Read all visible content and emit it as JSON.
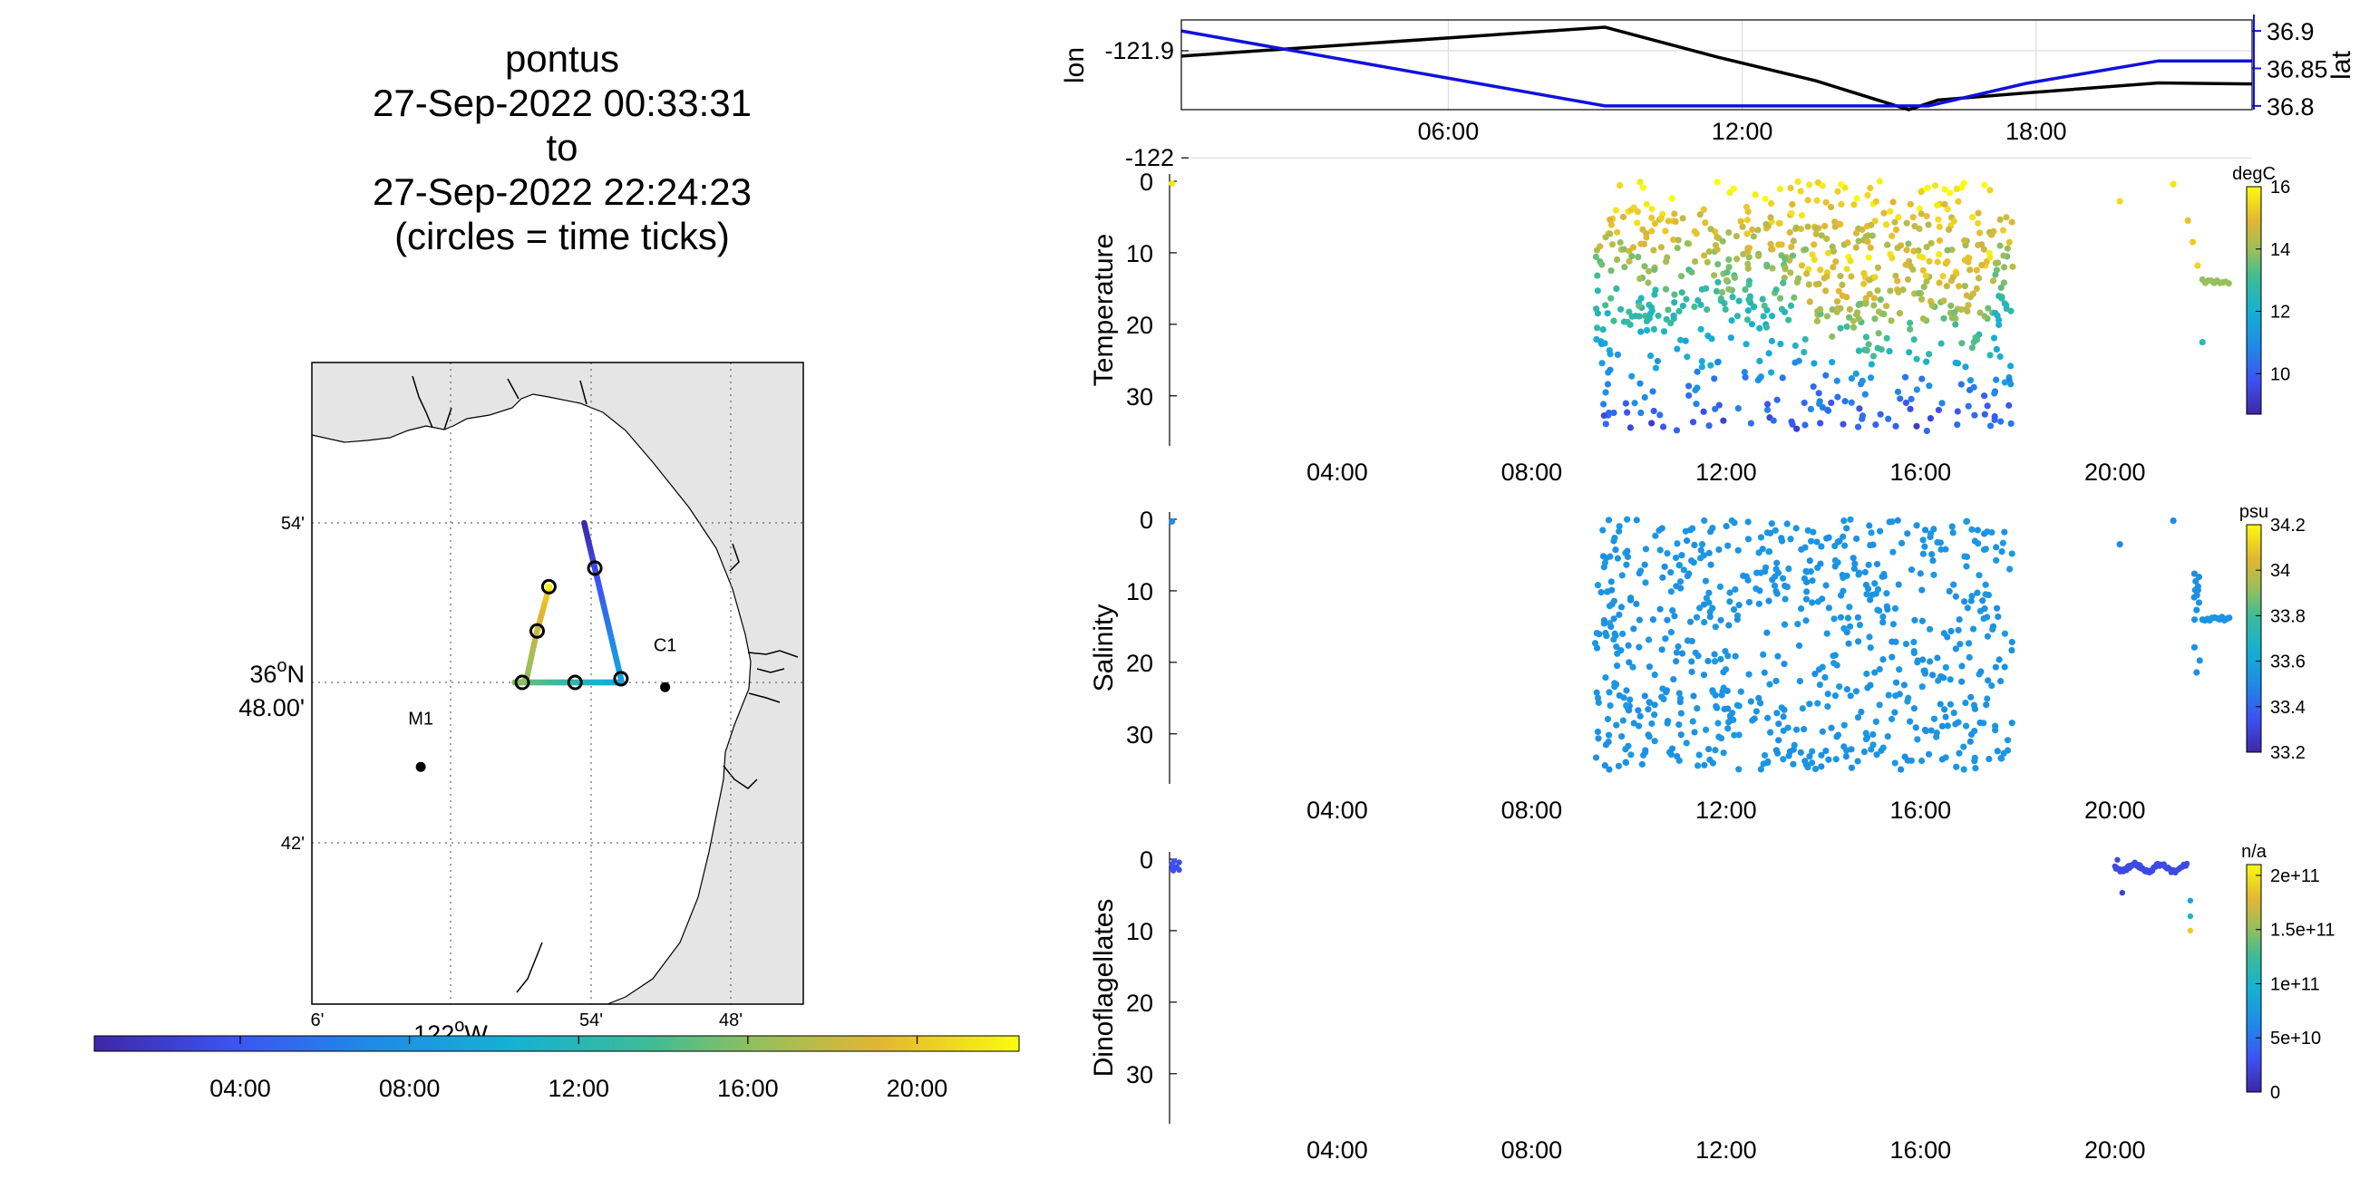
{
  "header": {
    "lines": [
      "pontus",
      "27-Sep-2022 00:33:31",
      "to",
      "27-Sep-2022 22:24:23",
      "(circles = time ticks)"
    ]
  },
  "map": {
    "lat_ticks": [
      "54'",
      "42'"
    ],
    "lat_center_deg": "36",
    "lat_center_min": "48.00'",
    "lat_center_n": "N",
    "lon_ticks": [
      "6'",
      "54'",
      "48'"
    ],
    "lon_center_deg": "122",
    "lon_center_w": "W",
    "stations": [
      {
        "name": "C1",
        "lon": -121.847,
        "lat": 36.797
      },
      {
        "name": "M1",
        "lon": -122.022,
        "lat": 36.747
      }
    ],
    "land_color": "#e5e5e5",
    "track_colormap": "parula"
  },
  "colorbar_time": {
    "ticks": [
      "04:00",
      "08:00",
      "12:00",
      "16:00",
      "20:00"
    ]
  },
  "chart_data": [
    {
      "type": "line",
      "panel": "position",
      "x_ticks": [
        "06:00",
        "12:00",
        "18:00"
      ],
      "series": [
        {
          "name": "lon",
          "color": "#000000",
          "x": [
            0.55,
            9.2,
            11.5,
            13.5,
            15.4,
            16.0,
            17.9,
            20.5,
            22.4
          ],
          "y": [
            -121.905,
            -121.878,
            -121.906,
            -121.928,
            -121.955,
            -121.946,
            -121.939,
            -121.93,
            -121.931
          ]
        },
        {
          "name": "lat",
          "color": "#1111dd",
          "x": [
            0.55,
            9.2,
            13.4,
            15.8,
            17.8,
            20.5,
            22.4
          ],
          "y": [
            36.9,
            36.8,
            36.8,
            36.8,
            36.83,
            36.86,
            36.86
          ]
        }
      ],
      "ylabel_left": "lon",
      "ylabel_right": "lat",
      "y_left_ticks": [
        "-121.9",
        "-122"
      ],
      "y_right_ticks": [
        "36.9",
        "36.85",
        "36.8"
      ]
    },
    {
      "type": "scatter",
      "panel": "temperature",
      "ylabel": "Temperature",
      "ylim": [
        0,
        37
      ],
      "y_ticks": [
        "0",
        "10",
        "20",
        "30"
      ],
      "x_ticks": [
        "04:00",
        "08:00",
        "12:00",
        "16:00",
        "20:00"
      ],
      "colorbar_units": "degC",
      "colorbar_ticks": [
        "16",
        "14",
        "12",
        "10"
      ],
      "crange": [
        8.7,
        16
      ]
    },
    {
      "type": "scatter",
      "panel": "salinity",
      "ylabel": "Salinity",
      "ylim": [
        0,
        37
      ],
      "y_ticks": [
        "0",
        "10",
        "20",
        "30"
      ],
      "x_ticks": [
        "04:00",
        "08:00",
        "12:00",
        "16:00",
        "20:00"
      ],
      "colorbar_units": "psu",
      "colorbar_ticks": [
        "34.2",
        "34",
        "33.8",
        "33.6",
        "33.4",
        "33.2"
      ],
      "crange": [
        33.2,
        34.2
      ]
    },
    {
      "type": "scatter",
      "panel": "dinoflagellates",
      "ylabel": "Dinoflagellates",
      "ylim": [
        0,
        37
      ],
      "y_ticks": [
        "0",
        "10",
        "20",
        "30"
      ],
      "x_ticks": [
        "04:00",
        "08:00",
        "12:00",
        "16:00",
        "20:00"
      ],
      "colorbar_units": "n/a",
      "colorbar_ticks": [
        "2e+11",
        "1.5e+11",
        "1e+11",
        "5e+10",
        "0"
      ],
      "crange": [
        0,
        210000000000.0
      ]
    }
  ]
}
